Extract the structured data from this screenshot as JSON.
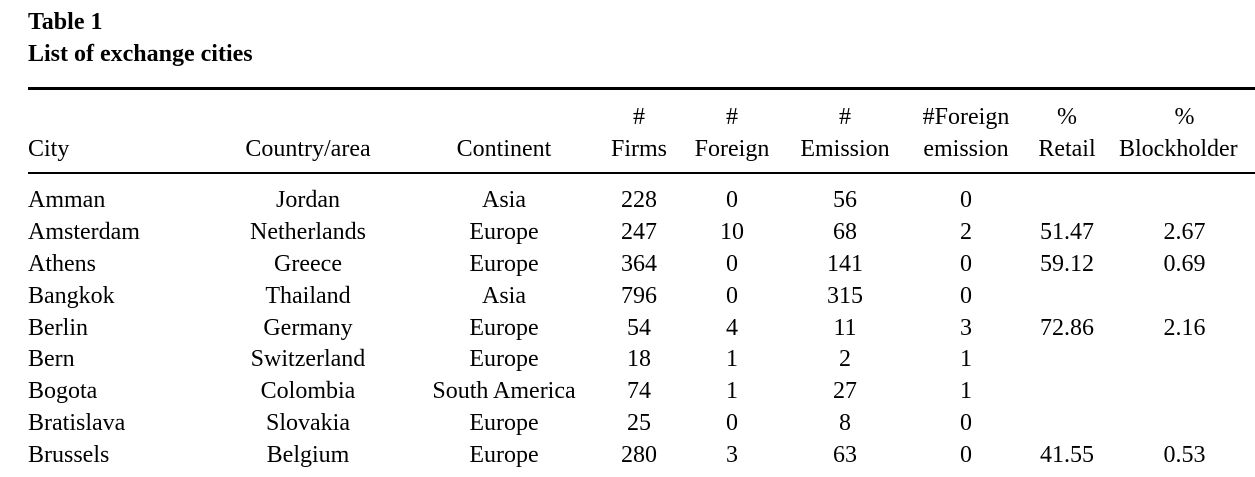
{
  "caption": {
    "label": "Table 1",
    "title": "List of exchange cities"
  },
  "table": {
    "headers": [
      {
        "line1": "",
        "line2": "City"
      },
      {
        "line1": "",
        "line2": "Country/area"
      },
      {
        "line1": "",
        "line2": "Continent"
      },
      {
        "line1": "#",
        "line2": "Firms"
      },
      {
        "line1": "#",
        "line2": "Foreign"
      },
      {
        "line1": "#",
        "line2": "Emission"
      },
      {
        "line1": "#Foreign",
        "line2": "emission"
      },
      {
        "line1": "%",
        "line2": "Retail"
      },
      {
        "line1": "%",
        "line2": "Blockholder"
      }
    ],
    "rows": [
      [
        "Amman",
        "Jordan",
        "Asia",
        "228",
        "0",
        "56",
        "0",
        "",
        ""
      ],
      [
        "Amsterdam",
        "Netherlands",
        "Europe",
        "247",
        "10",
        "68",
        "2",
        "51.47",
        "2.67"
      ],
      [
        "Athens",
        "Greece",
        "Europe",
        "364",
        "0",
        "141",
        "0",
        "59.12",
        "0.69"
      ],
      [
        "Bangkok",
        "Thailand",
        "Asia",
        "796",
        "0",
        "315",
        "0",
        "",
        ""
      ],
      [
        "Berlin",
        "Germany",
        "Europe",
        "54",
        "4",
        "11",
        "3",
        "72.86",
        "2.16"
      ],
      [
        "Bern",
        "Switzerland",
        "Europe",
        "18",
        "1",
        "2",
        "1",
        "",
        ""
      ],
      [
        "Bogota",
        "Colombia",
        "South America",
        "74",
        "1",
        "27",
        "1",
        "",
        ""
      ],
      [
        "Bratislava",
        "Slovakia",
        "Europe",
        "25",
        "0",
        "8",
        "0",
        "",
        ""
      ],
      [
        "Brussels",
        "Belgium",
        "Europe",
        "280",
        "3",
        "63",
        "0",
        "41.55",
        "0.53"
      ]
    ]
  }
}
